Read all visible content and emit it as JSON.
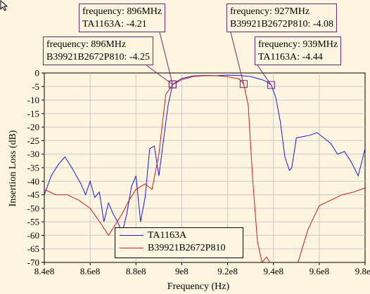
{
  "chart_data": {
    "type": "line",
    "xlabel": "Frequency (Hz)",
    "ylabel": "Insertion Loss (dB)",
    "xlim": [
      840000000.0,
      980000000.0
    ],
    "ylim": [
      -70,
      0
    ],
    "x_ticks": [
      "8.4e8",
      "8.6e8",
      "8.8e8",
      "9e8",
      "9.2e8",
      "9.4e8",
      "9.6e8",
      "9.8e8"
    ],
    "y_ticks": [
      "0",
      "-5",
      "-10",
      "-15",
      "-20",
      "-25",
      "-30",
      "-35",
      "-40",
      "-45",
      "-50",
      "-55",
      "-60",
      "-65",
      "-70"
    ],
    "grid": true,
    "legend_placement": "bottom-center",
    "series": [
      {
        "name": "TA1163A",
        "color": "#1a1ad8",
        "x": [
          840,
          843,
          846,
          849,
          852,
          854,
          856,
          858,
          860,
          862,
          864,
          866,
          868,
          870,
          872,
          874,
          876,
          878,
          880,
          882,
          884,
          886,
          888,
          890,
          892,
          894,
          896,
          900,
          905,
          910,
          915,
          920,
          925,
          930,
          935,
          937,
          939,
          941,
          943,
          945,
          947,
          948,
          950,
          953,
          956,
          959,
          962,
          965,
          968,
          971,
          974,
          977,
          980
        ],
        "y": [
          -45,
          -38,
          -34,
          -31,
          -35,
          -38,
          -41,
          -45,
          -40,
          -46,
          -44,
          -55,
          -48,
          -52,
          -55,
          -59,
          -52,
          -42,
          -38,
          -55,
          -46,
          -28,
          -27,
          -38,
          -25,
          -12,
          -4.21,
          -2,
          -1.1,
          -0.9,
          -1,
          -0.8,
          -0.9,
          -1.3,
          -2.5,
          -3.2,
          -4.44,
          -9,
          -18,
          -31,
          -36,
          -35,
          -24,
          -23.5,
          -23,
          -22,
          -24,
          -26,
          -30,
          -29,
          -33,
          -38,
          -28
        ]
      },
      {
        "name": "B39921B2672P810",
        "color": "#d01c1c",
        "x": [
          840,
          845,
          850,
          855,
          860,
          865,
          868,
          871,
          874,
          877,
          880,
          884,
          887,
          890,
          893,
          896,
          900,
          905,
          910,
          915,
          920,
          925,
          927,
          929,
          931,
          933,
          935,
          937,
          940,
          945,
          950,
          955,
          960,
          965,
          970,
          975,
          980
        ],
        "y": [
          -43,
          -45,
          -45,
          -47,
          -50,
          -56,
          -60,
          -56,
          -52,
          -47,
          -43,
          -41,
          -43,
          -30,
          -8,
          -4.25,
          -2.5,
          -1.3,
          -1,
          -1,
          -1.4,
          -2.2,
          -4.08,
          -12,
          -40,
          -62,
          -70,
          -68,
          -72,
          -72,
          -72,
          -58,
          -49,
          -47,
          -45,
          -44,
          -42.5
        ]
      }
    ],
    "annotations": [
      {
        "line1_label": "frequency:",
        "line1_value": "896MHz",
        "line2_label": "TA1163A:",
        "line2_value": "-4.21",
        "x": 896,
        "y": -4.21
      },
      {
        "line1_label": "frequency:",
        "line1_value": "896MHz",
        "line2_label": "B39921B2672P810:",
        "line2_value": "-4.25",
        "x": 896,
        "y": -4.25
      },
      {
        "line1_label": "frequency:",
        "line1_value": "927MHz",
        "line2_label": "B39921B2672P810:",
        "line2_value": "-4.08",
        "x": 927,
        "y": -4.08
      },
      {
        "line1_label": "frequency:",
        "line1_value": "939MHz",
        "line2_label": "TA1163A:",
        "line2_value": "-4.44",
        "x": 939,
        "y": -4.44
      }
    ]
  },
  "icons": {
    "cursor": "mouse-pointer-icon"
  }
}
